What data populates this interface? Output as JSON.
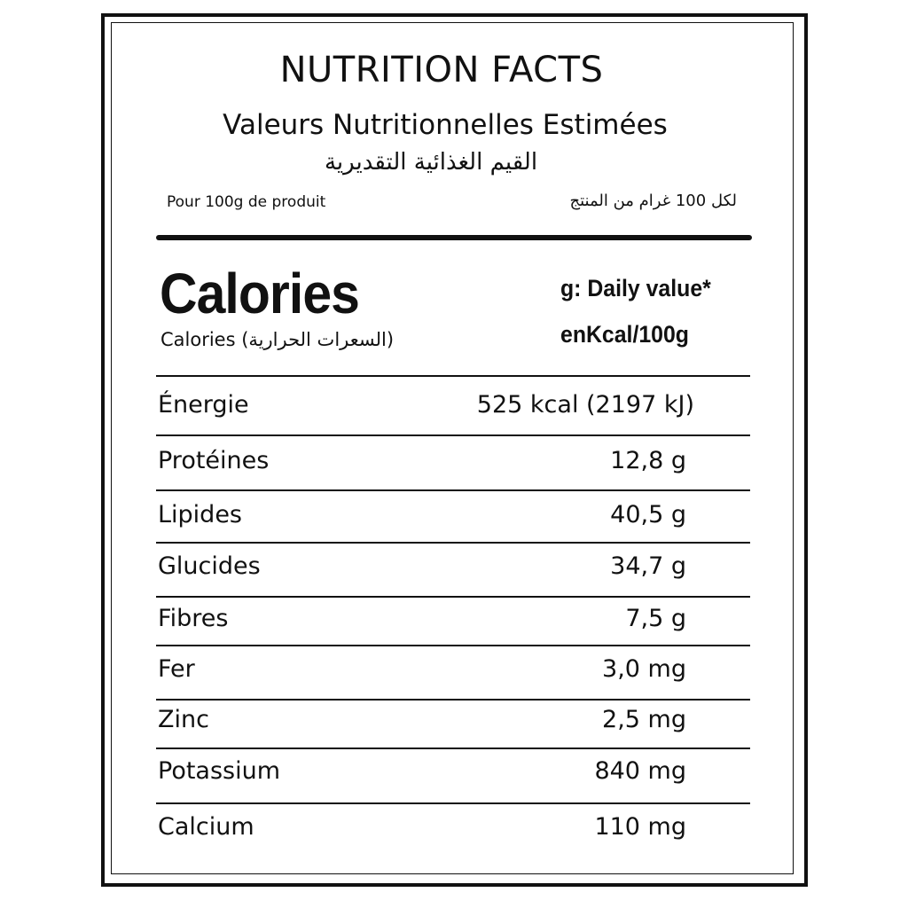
{
  "title": "NUTRITION FACTS",
  "subtitle_fr": "Valeurs Nutritionnelles Estimées",
  "subtitle_ar": "القيم الغذائية التقديرية",
  "per_fr": "Pour 100g de produit",
  "per_ar": "لكل 100 غرام من المنتج",
  "calories": {
    "heading": "Calories",
    "subheading": "Calories (السعرات الحرارية)",
    "daily_value_label": "g: Daily value*",
    "unit_label": "enKcal/100g"
  },
  "nutrients": [
    {
      "name": "Énergie",
      "value": "525 kcal (2197 kJ)"
    },
    {
      "name": "Protéines",
      "value": "12,8 g"
    },
    {
      "name": "Lipides",
      "value": "40,5 g"
    },
    {
      "name": "Glucides",
      "value": "34,7 g"
    },
    {
      "name": "Fibres",
      "value": "7,5 g"
    },
    {
      "name": "Fer",
      "value": "3,0 mg"
    },
    {
      "name": "Zinc",
      "value": "2,5 mg"
    },
    {
      "name": "Potassium",
      "value": "840 mg"
    },
    {
      "name": "Calcium",
      "value": "110 mg"
    }
  ]
}
